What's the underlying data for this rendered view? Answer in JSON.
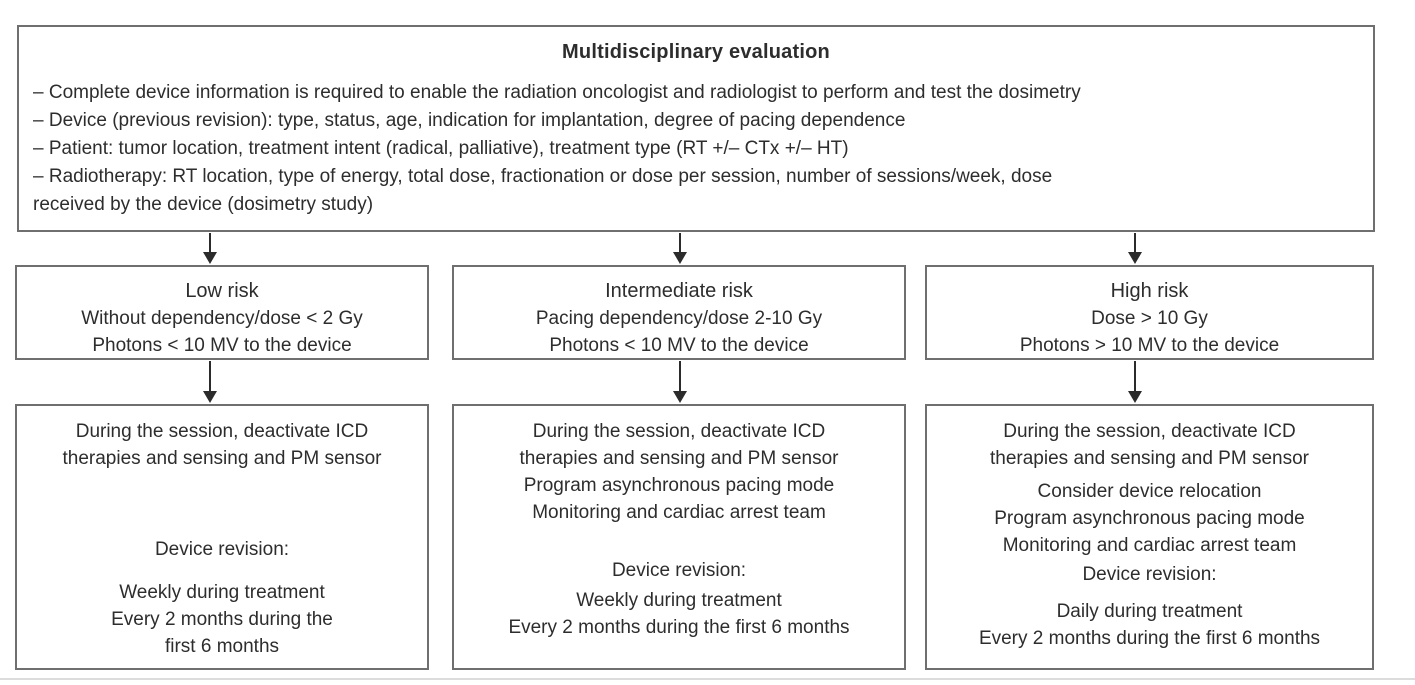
{
  "theme": {
    "background": "#ffffff",
    "border_color": "#6f6f6f",
    "text_color": "#2d2d2d",
    "arrow_color": "#2b2b2b"
  },
  "top": {
    "title": "Multidisciplinary evaluation",
    "lines": [
      "– Complete device information is required to enable the radiation oncologist and radiologist to perform and test the dosimetry",
      "– Device (previous revision): type, status, age, indication for implantation, degree of pacing dependence",
      "– Patient: tumor location, treatment intent (radical, palliative), treatment type (RT +/– CTx +/– HT)",
      "– Radiotherapy: RT location, type of energy, total dose, fractionation or dose per session, number of sessions/week, dose",
      "received by the device (dosimetry study)"
    ]
  },
  "columns": [
    {
      "id": "low-risk",
      "risk_title": "Low risk",
      "risk_lines": [
        "Without dependency/dose < 2 Gy",
        "Photons < 10 MV to the device"
      ],
      "action": {
        "intro": [
          "During the session, deactivate ICD",
          "therapies and sensing and PM sensor"
        ],
        "extra": [],
        "revision_label": "Device revision:",
        "revision_lines": [
          "Weekly during treatment",
          "Every 2 months during the",
          "first 6 months"
        ]
      }
    },
    {
      "id": "intermediate-risk",
      "risk_title": "Intermediate risk",
      "risk_lines": [
        "Pacing dependency/dose 2-10 Gy",
        "Photons < 10 MV to the device"
      ],
      "action": {
        "intro": [
          "During the session, deactivate ICD",
          "therapies and sensing and PM sensor"
        ],
        "extra": [
          "Program asynchronous pacing mode",
          "Monitoring and cardiac arrest team"
        ],
        "revision_label": "Device revision:",
        "revision_lines": [
          "Weekly during treatment",
          "Every 2 months during the first 6 months"
        ]
      }
    },
    {
      "id": "high-risk",
      "risk_title": "High risk",
      "risk_lines": [
        "Dose > 10 Gy",
        "Photons > 10 MV to the device"
      ],
      "action": {
        "intro": [
          "During the session, deactivate ICD",
          "therapies and sensing and PM sensor"
        ],
        "extra": [
          "Consider device relocation",
          "Program asynchronous pacing mode",
          "Monitoring and cardiac arrest team"
        ],
        "revision_label": "Device revision:",
        "revision_lines": [
          "Daily during treatment",
          "Every 2 months during the first 6 months"
        ]
      }
    }
  ]
}
